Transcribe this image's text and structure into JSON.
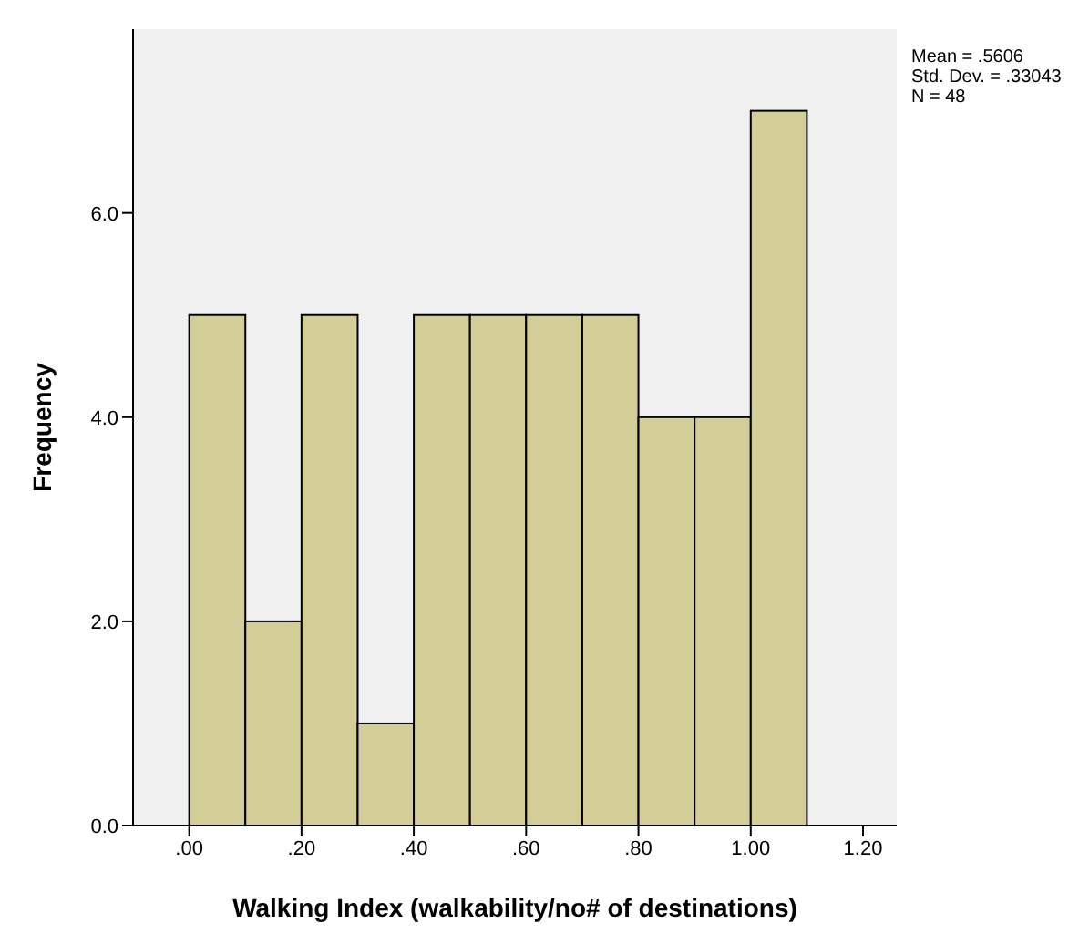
{
  "chart_data": {
    "type": "histogram",
    "xlabel": "Walking Index (walkability/no# of destinations)",
    "ylabel": "Frequency",
    "bins": [
      0,
      0.1,
      0.2,
      0.3,
      0.4,
      0.5,
      0.6,
      0.7,
      0.8,
      0.9,
      1.0,
      1.1
    ],
    "values": [
      5,
      2,
      5,
      1,
      5,
      5,
      5,
      5,
      4,
      4,
      7
    ],
    "color": "#d3ce97",
    "xlim": [
      -0.1,
      1.26
    ],
    "xticks": [
      {
        "value": 0,
        "label": ".00"
      },
      {
        "value": 0.2,
        "label": ".20"
      },
      {
        "value": 0.4,
        "label": ".40"
      },
      {
        "value": 0.6,
        "label": ".60"
      },
      {
        "value": 0.8,
        "label": ".80"
      },
      {
        "value": 1.0,
        "label": "1.00"
      },
      {
        "value": 1.2,
        "label": "1.20"
      }
    ],
    "ylim": [
      0,
      7.8
    ],
    "yticks": [
      {
        "value": 0,
        "label": "0.0"
      },
      {
        "value": 2,
        "label": "2.0"
      },
      {
        "value": 4,
        "label": "4.0"
      },
      {
        "value": 6,
        "label": "6.0"
      }
    ],
    "grid": false,
    "annotations": [
      "Mean = .5606",
      "Std. Dev. = .33043",
      "N = 48"
    ]
  }
}
